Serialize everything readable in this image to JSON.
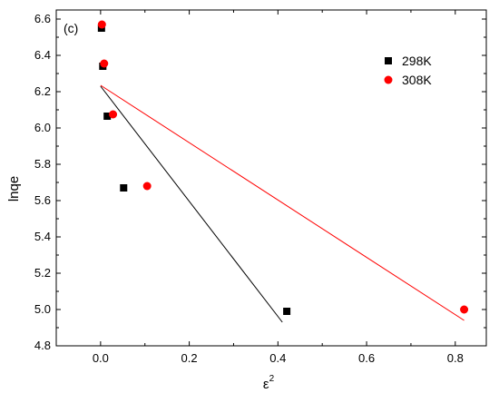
{
  "chart_data": {
    "type": "scatter",
    "panel_label": "(c)",
    "xlabel": "ε",
    "xlabel_superscript": "2",
    "ylabel": "lnqe",
    "xlim": [
      -0.1,
      0.87
    ],
    "ylim": [
      4.8,
      6.65
    ],
    "x_ticks": [
      0.0,
      0.2,
      0.4,
      0.6,
      0.8
    ],
    "x_tick_labels": [
      "0.0",
      "0.2",
      "0.4",
      "0.6",
      "0.8"
    ],
    "y_ticks": [
      4.8,
      5.0,
      5.2,
      5.4,
      5.6,
      5.8,
      6.0,
      6.2,
      6.4,
      6.6
    ],
    "y_tick_labels": [
      "4.8",
      "5.0",
      "5.2",
      "5.4",
      "5.6",
      "5.8",
      "6.0",
      "6.2",
      "6.4",
      "6.6"
    ],
    "grid": false,
    "legend_position": "top-right",
    "series": [
      {
        "name": "298K",
        "marker": "square",
        "color": "#000000",
        "x": [
          0.002,
          0.005,
          0.015,
          0.052,
          0.42
        ],
        "y": [
          6.55,
          6.34,
          6.065,
          5.67,
          4.99
        ],
        "fit_line": {
          "x": [
            0.0,
            0.41
          ],
          "y": [
            6.23,
            4.93
          ]
        }
      },
      {
        "name": "308K",
        "marker": "circle",
        "color": "#ff0000",
        "x": [
          0.003,
          0.008,
          0.028,
          0.105,
          0.82
        ],
        "y": [
          6.57,
          6.355,
          6.075,
          5.68,
          5.0
        ],
        "fit_line": {
          "x": [
            0.0,
            0.82
          ],
          "y": [
            6.235,
            4.94
          ]
        }
      }
    ]
  }
}
